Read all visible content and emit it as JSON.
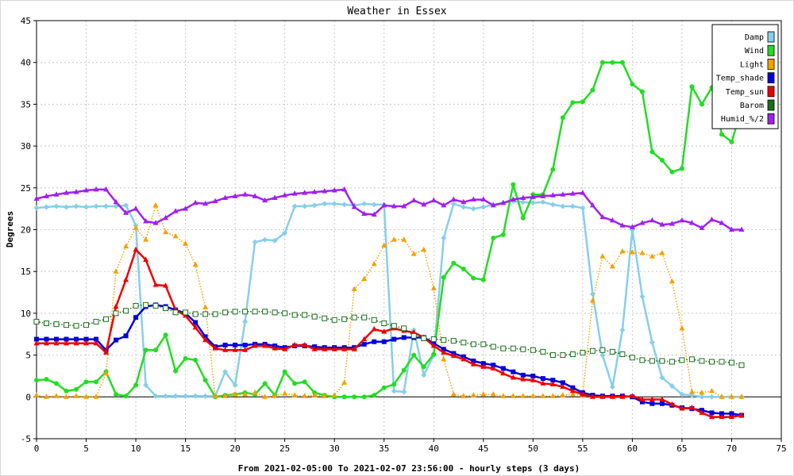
{
  "chart_data": {
    "type": "line",
    "title": "Weather in Essex",
    "xlabel": "From 2021-02-05:00 To 2021-02-07 23:56:00 - hourly steps (3 days)",
    "ylabel": "Degrees",
    "xlim": [
      0,
      75
    ],
    "ylim": [
      -5,
      45
    ],
    "xticks": [
      0,
      5,
      10,
      15,
      20,
      25,
      30,
      35,
      40,
      45,
      50,
      55,
      60,
      65,
      70,
      75
    ],
    "yticks": [
      -5,
      0,
      5,
      10,
      15,
      20,
      25,
      30,
      35,
      40,
      45
    ],
    "grid": true,
    "legend_position": "top-right",
    "zero_line": true,
    "series": [
      {
        "name": "Damp",
        "color": "#87ceeb",
        "marker": "diamond",
        "style": "solid",
        "values": [
          22.6,
          22.7,
          22.8,
          22.7,
          22.8,
          22.7,
          22.8,
          22.8,
          22.8,
          22.9,
          20.5,
          1.4,
          0.1,
          0.1,
          0.1,
          0.1,
          0.1,
          0.1,
          0.1,
          3.0,
          1.4,
          9.0,
          18.5,
          18.8,
          18.7,
          19.6,
          22.8,
          22.8,
          22.9,
          23.1,
          23.1,
          23.0,
          22.9,
          23.1,
          23.0,
          23.0,
          0.7,
          0.6,
          8.0,
          2.6,
          5.0,
          19.0,
          23.1,
          22.7,
          22.5,
          22.7,
          23.0,
          23.2,
          23.4,
          23.3,
          23.2,
          23.3,
          23.0,
          22.8,
          22.8,
          22.6,
          12.3,
          5.0,
          1.2,
          8.0,
          20.0,
          12.0,
          6.5,
          2.3,
          1.3,
          0.3,
          0.2,
          0.0,
          0.0,
          0.0,
          0.0,
          0.0
        ]
      },
      {
        "name": "Wind",
        "color": "#22dd22",
        "marker": "circle",
        "style": "solid",
        "values": [
          2.0,
          2.1,
          1.6,
          0.7,
          0.9,
          1.8,
          1.8,
          3.0,
          0.3,
          0.1,
          1.4,
          5.6,
          5.6,
          7.4,
          3.1,
          4.6,
          4.4,
          2.0,
          0.0,
          0.2,
          0.3,
          0.5,
          0.3,
          1.6,
          0.2,
          3.0,
          1.6,
          1.8,
          0.5,
          0.2,
          0.0,
          0.0,
          0.0,
          0.0,
          0.2,
          1.1,
          1.5,
          3.2,
          5.0,
          3.6,
          5.1,
          14.3,
          16.0,
          15.3,
          14.2,
          14.0,
          19.0,
          19.4,
          25.4,
          21.4,
          24.2,
          24.2,
          27.2,
          33.4,
          35.2,
          35.3,
          36.7,
          40.0,
          40.0,
          40.0,
          37.4,
          36.5,
          29.3,
          28.3,
          26.9,
          27.3,
          37.1,
          35.0,
          37.0,
          31.4,
          30.5,
          34.5
        ]
      },
      {
        "name": "Light",
        "color": "#f5a000",
        "marker": "triangle",
        "style": "dotted",
        "values": [
          0.2,
          0.0,
          0.1,
          0.0,
          0.1,
          0.0,
          0.0,
          2.8,
          15.0,
          18.0,
          20.2,
          18.8,
          22.9,
          19.7,
          19.2,
          18.3,
          15.8,
          10.7,
          0.1,
          0.1,
          0.3,
          0.3,
          0.5,
          0.0,
          0.1,
          0.4,
          0.2,
          0.1,
          0.2,
          0.1,
          0.2,
          1.7,
          12.9,
          14.1,
          15.9,
          18.1,
          18.8,
          18.8,
          17.1,
          17.6,
          13.0,
          4.5,
          0.3,
          0.1,
          0.2,
          0.3,
          0.3,
          0.1,
          0.1,
          0.1,
          0.1,
          0.1,
          0.1,
          0.2,
          0.3,
          0.2,
          11.5,
          16.8,
          15.6,
          17.4,
          17.3,
          17.2,
          16.8,
          17.2,
          13.8,
          8.2,
          0.6,
          0.5,
          0.7,
          0.0,
          0.0,
          0.0
        ]
      },
      {
        "name": "Temp_shade",
        "color": "#0000dd",
        "marker": "square",
        "style": "solid",
        "values": [
          6.9,
          6.9,
          6.9,
          6.9,
          6.9,
          6.9,
          6.9,
          5.6,
          6.8,
          7.3,
          9.5,
          10.8,
          11.0,
          10.8,
          10.4,
          10.0,
          8.9,
          7.2,
          6.0,
          6.2,
          6.2,
          6.2,
          6.3,
          6.3,
          6.1,
          5.9,
          6.1,
          6.1,
          6.0,
          5.9,
          5.9,
          5.9,
          5.9,
          6.3,
          6.6,
          6.6,
          6.9,
          7.1,
          7.1,
          7.1,
          6.4,
          5.7,
          5.2,
          4.8,
          4.3,
          4.0,
          3.8,
          3.4,
          3.0,
          2.6,
          2.5,
          2.2,
          2.0,
          1.7,
          1.1,
          0.5,
          0.2,
          0.1,
          0.1,
          0.1,
          0.0,
          -0.6,
          -0.8,
          -0.8,
          -1.0,
          -1.3,
          -1.4,
          -1.6,
          -1.9,
          -2.0,
          -2.0,
          -2.2
        ]
      },
      {
        "name": "Temp_sun",
        "color": "#ee0000",
        "marker": "triangle",
        "style": "solid",
        "values": [
          6.4,
          6.4,
          6.4,
          6.4,
          6.4,
          6.4,
          6.4,
          5.3,
          10.8,
          14.0,
          17.6,
          16.4,
          13.4,
          13.3,
          10.4,
          9.7,
          8.3,
          6.8,
          5.8,
          5.6,
          5.6,
          5.6,
          6.1,
          6.1,
          5.8,
          5.7,
          6.2,
          6.2,
          5.7,
          5.7,
          5.7,
          5.7,
          5.7,
          6.9,
          8.1,
          7.8,
          8.2,
          7.9,
          7.7,
          7.1,
          6.1,
          5.3,
          4.9,
          4.5,
          3.9,
          3.6,
          3.4,
          2.8,
          2.3,
          2.1,
          2.0,
          1.6,
          1.5,
          1.2,
          0.7,
          0.3,
          0.0,
          0.0,
          0.0,
          0.0,
          0.1,
          -0.3,
          -0.3,
          -0.3,
          -0.9,
          -1.4,
          -1.3,
          -1.9,
          -2.4,
          -2.4,
          -2.4,
          -2.2
        ]
      },
      {
        "name": "Barom",
        "color": "#1a6e1a",
        "marker": "open-square",
        "style": "dotted",
        "values": [
          9.0,
          8.8,
          8.7,
          8.6,
          8.5,
          8.6,
          9.0,
          9.3,
          10.0,
          10.3,
          10.9,
          11.0,
          10.9,
          10.6,
          10.1,
          10.1,
          9.9,
          9.9,
          9.9,
          10.1,
          10.2,
          10.2,
          10.2,
          10.2,
          10.1,
          10.0,
          9.8,
          9.8,
          9.6,
          9.4,
          9.2,
          9.3,
          9.5,
          9.5,
          9.2,
          8.8,
          8.5,
          8.2,
          7.3,
          7.0,
          6.9,
          6.8,
          6.7,
          6.5,
          6.3,
          6.3,
          6.0,
          5.8,
          5.8,
          5.7,
          5.6,
          5.4,
          5.0,
          5.0,
          5.1,
          5.3,
          5.5,
          5.6,
          5.4,
          5.1,
          4.7,
          4.4,
          4.3,
          4.3,
          4.2,
          4.4,
          4.5,
          4.3,
          4.2,
          4.2,
          4.1,
          3.8
        ]
      },
      {
        "name": "Humid_%/2",
        "color": "#a020f0",
        "marker": "triangle",
        "style": "solid",
        "values": [
          23.7,
          24.0,
          24.2,
          24.4,
          24.5,
          24.7,
          24.8,
          24.8,
          23.3,
          22.0,
          22.5,
          21.0,
          20.8,
          21.4,
          22.2,
          22.5,
          23.2,
          23.1,
          23.4,
          23.8,
          24.0,
          24.2,
          24.0,
          23.5,
          23.8,
          24.1,
          24.3,
          24.4,
          24.5,
          24.6,
          24.7,
          24.8,
          22.7,
          21.9,
          21.8,
          22.9,
          22.8,
          22.8,
          23.5,
          23.0,
          23.5,
          22.9,
          23.6,
          23.3,
          23.6,
          23.6,
          22.9,
          23.2,
          23.6,
          23.8,
          23.9,
          24.0,
          24.1,
          24.2,
          24.3,
          24.4,
          22.9,
          21.5,
          21.1,
          20.5,
          20.3,
          20.8,
          21.1,
          20.6,
          20.7,
          21.1,
          20.8,
          20.2,
          21.2,
          20.8,
          20.0,
          20.0
        ]
      }
    ]
  }
}
